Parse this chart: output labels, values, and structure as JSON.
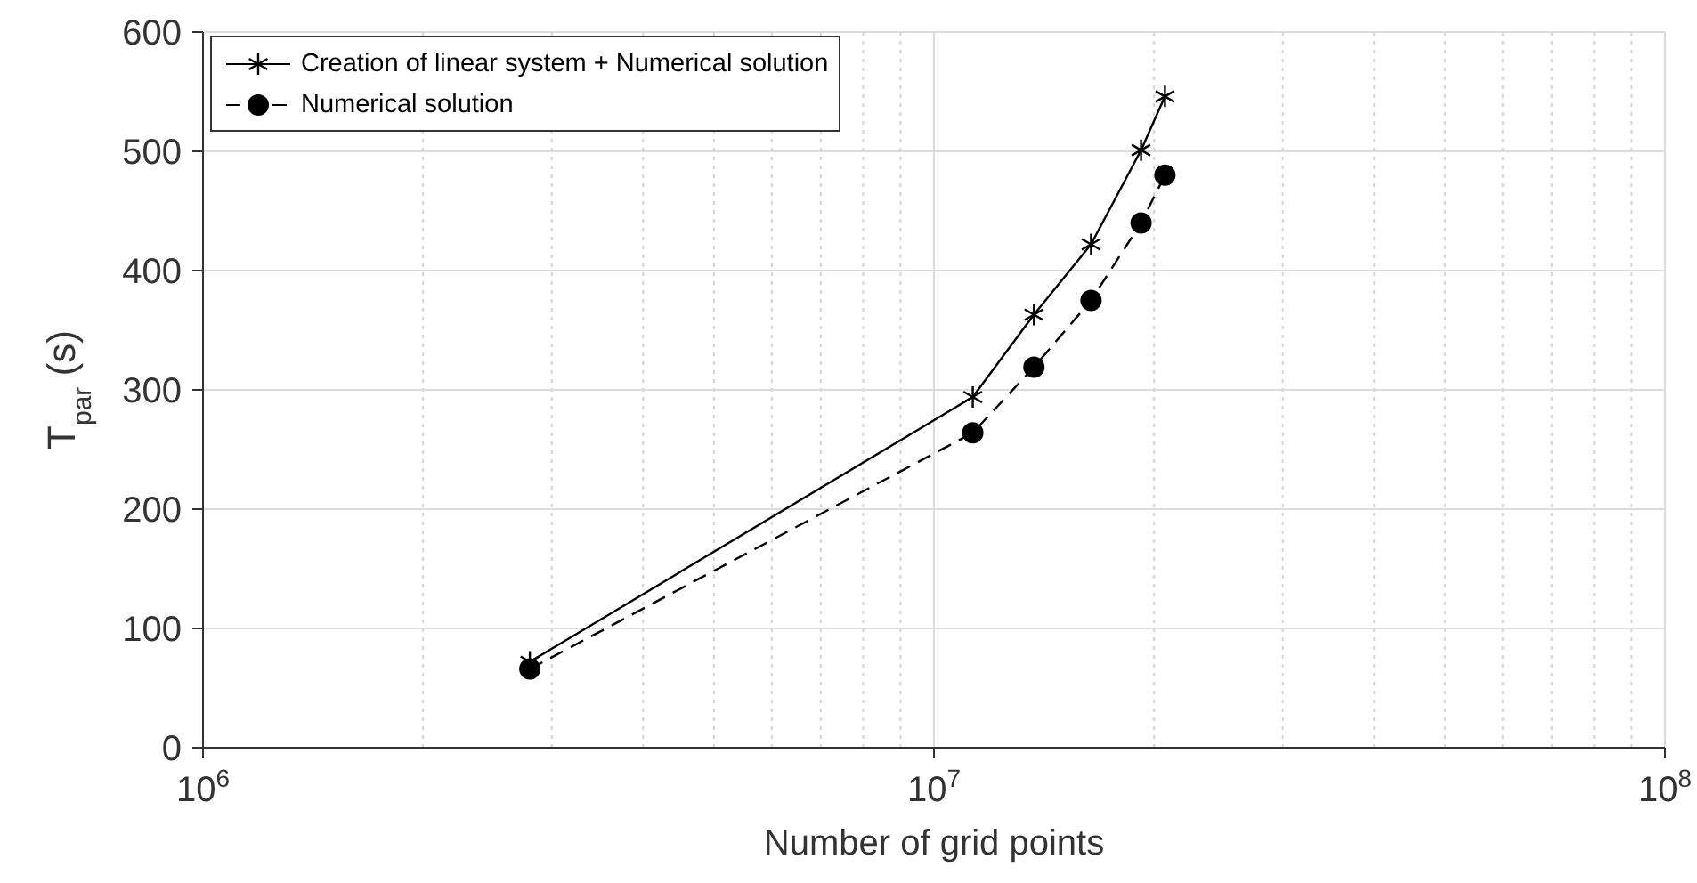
{
  "chart_data": {
    "type": "line",
    "xlabel": "Number of grid points",
    "ylabel": "T$_{par}$ (s)",
    "log": "x",
    "xlim": [
      1000000,
      100000000
    ],
    "xticks": [
      {
        "value": 1000000,
        "label": "10$^{6}$"
      },
      {
        "value": 10000000,
        "label": "10$^{7}$"
      },
      {
        "value": 100000000,
        "label": "10$^{8}$"
      }
    ],
    "ylim": [
      0,
      600
    ],
    "yticks": [
      0,
      100,
      200,
      300,
      400,
      500,
      600
    ],
    "grid": true,
    "legend": "top left",
    "x": [
      2800000,
      11300000,
      13700000,
      16400000,
      19200000,
      20700000
    ],
    "series": [
      {
        "name": "Creation of linear system + Numerical solution",
        "color": "#000000",
        "values": [
          72,
          294,
          363,
          422,
          501,
          546
        ],
        "marker": "cross",
        "line_style": "solid"
      },
      {
        "name": "Numerical solution",
        "color": "#000000",
        "values": [
          66,
          264,
          319,
          375,
          440,
          480
        ],
        "marker": "circle",
        "line_style": "dashed"
      }
    ]
  }
}
